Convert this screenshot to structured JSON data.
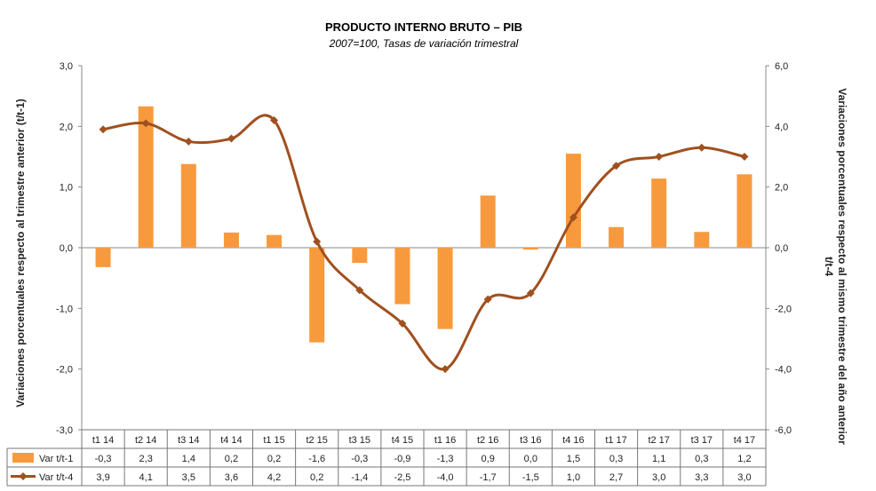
{
  "chart_data": {
    "type": "bar+line",
    "title": "PRODUCTO INTERNO BRUTO – PIB",
    "subtitle": "2007=100, Tasas de variación trimestral",
    "ylabel_left": "Variaciones porcentuales respecto al trimestre anterior (t/t-1)",
    "ylabel_right_line1": "Variaciones porcentuales respecto al mismo trimestre del año anterior",
    "ylabel_right_line2": "t/t-4",
    "ylim_left": [
      -3.0,
      3.0
    ],
    "ylim_right": [
      -6.0,
      6.0
    ],
    "yticks_left": [
      "3,0",
      "2,0",
      "1,0",
      "0,0",
      "-1,0",
      "-2,0",
      "-3,0"
    ],
    "yticks_right": [
      "6,0",
      "4,0",
      "2,0",
      "0,0",
      "-2,0",
      "-4,0",
      "-6,0"
    ],
    "categories": [
      "t1 14",
      "t2 14",
      "t3 14",
      "t4 14",
      "t1 15",
      "t2 15",
      "t3 15",
      "t4 15",
      "t1 16",
      "t2 16",
      "t3 16",
      "t4 16",
      "t1 17",
      "t2 17",
      "t3 17",
      "t4 17"
    ],
    "series": [
      {
        "name": "Var t/t-1",
        "kind": "bar",
        "axis": "left",
        "color": "#F79A3E",
        "values": [
          -0.32,
          2.33,
          1.38,
          0.25,
          0.21,
          -1.56,
          -0.25,
          -0.93,
          -1.34,
          0.86,
          -0.03,
          1.55,
          0.34,
          1.14,
          0.26,
          1.21
        ],
        "labels": [
          "-0,3",
          "2,3",
          "1,4",
          "0,2",
          "0,2",
          "-1,6",
          "-0,3",
          "-0,9",
          "-1,3",
          "0,9",
          "0,0",
          "1,5",
          "0,3",
          "1,1",
          "0,3",
          "1,2"
        ]
      },
      {
        "name": "Var t/t-4",
        "kind": "line",
        "axis": "right",
        "color": "#A0501E",
        "values": [
          3.9,
          4.1,
          3.5,
          3.6,
          4.2,
          0.2,
          -1.4,
          -2.5,
          -4.0,
          -1.7,
          -1.5,
          1.0,
          2.7,
          3.0,
          3.3,
          3.0
        ],
        "labels": [
          "3,9",
          "4,1",
          "3,5",
          "3,6",
          "4,2",
          "0,2",
          "-1,4",
          "-2,5",
          "-4,0",
          "-1,7",
          "-1,5",
          "1,0",
          "2,7",
          "3,0",
          "3,3",
          "3,0"
        ]
      }
    ]
  }
}
